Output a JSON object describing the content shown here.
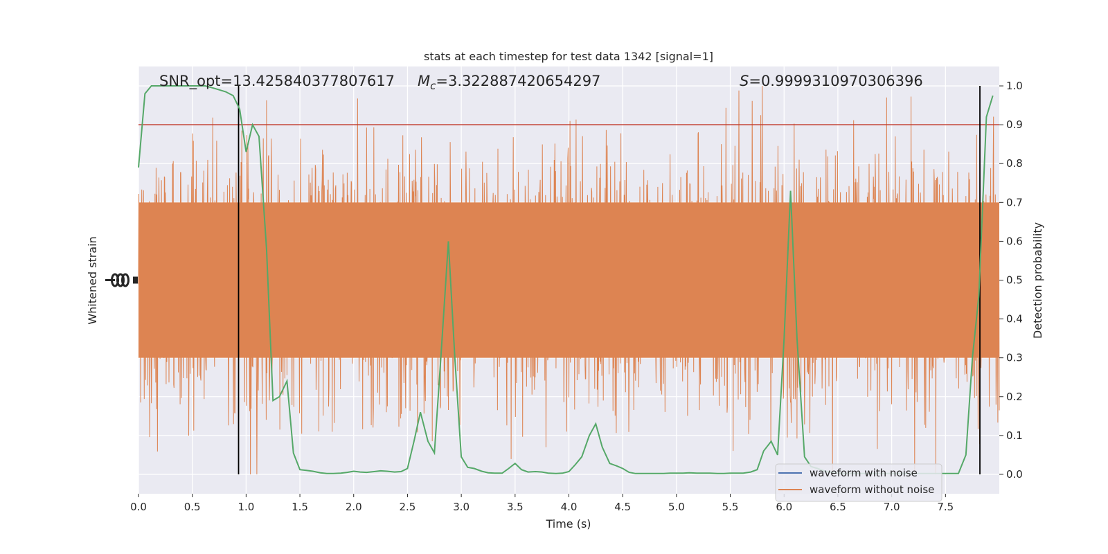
{
  "chart_data": {
    "type": "line",
    "title": "stats at each timestep for test data 1342 [signal=1]",
    "xlabel": "Time (s)",
    "ylabel_left": "Whitened strain",
    "ylabel_right": "Detection probability",
    "xlim": [
      0.0,
      8.0
    ],
    "right_ylim": [
      -0.05,
      1.05
    ],
    "x_ticks": [
      "0.0",
      "0.5",
      "1.0",
      "1.5",
      "2.0",
      "2.5",
      "3.0",
      "3.5",
      "4.0",
      "4.5",
      "5.0",
      "5.5",
      "6.0",
      "6.5",
      "7.0",
      "7.5"
    ],
    "right_y_ticks": [
      "0.0",
      "0.1",
      "0.2",
      "0.3",
      "0.4",
      "0.5",
      "0.6",
      "0.7",
      "0.8",
      "0.9",
      "1.0"
    ],
    "grid": true,
    "annotations": {
      "snr": "SNR_opt=13.425840377807617",
      "mc_symbol": "M",
      "mc_sub": "c",
      "mc_value": "=3.322887420654297",
      "s_symbol": "S",
      "s_value": "=0.9999310970306396"
    },
    "threshold": {
      "value": 0.9,
      "color": "#c0392b"
    },
    "vlines": [
      0.93,
      7.82
    ],
    "series": [
      {
        "name": "waveform with noise",
        "color": "#4c72b0",
        "values": []
      },
      {
        "name": "waveform without noise",
        "color": "#dd8452"
      },
      {
        "color": "#55a868",
        "x": [
          0.0,
          0.06,
          0.12,
          0.19,
          0.25,
          0.31,
          0.38,
          0.44,
          0.5,
          0.56,
          0.62,
          0.69,
          0.75,
          0.81,
          0.88,
          0.94,
          1.0,
          1.06,
          1.12,
          1.19,
          1.25,
          1.31,
          1.38,
          1.44,
          1.5,
          1.56,
          1.62,
          1.69,
          1.75,
          1.81,
          1.88,
          1.94,
          2.0,
          2.06,
          2.12,
          2.19,
          2.25,
          2.31,
          2.38,
          2.44,
          2.5,
          2.56,
          2.62,
          2.69,
          2.75,
          2.81,
          2.88,
          2.94,
          3.0,
          3.06,
          3.12,
          3.19,
          3.25,
          3.31,
          3.38,
          3.44,
          3.5,
          3.56,
          3.62,
          3.69,
          3.75,
          3.81,
          3.88,
          3.94,
          4.0,
          4.06,
          4.12,
          4.19,
          4.25,
          4.31,
          4.38,
          4.44,
          4.5,
          4.56,
          4.62,
          4.69,
          4.75,
          4.81,
          4.88,
          4.94,
          5.0,
          5.06,
          5.12,
          5.19,
          5.25,
          5.31,
          5.38,
          5.44,
          5.5,
          5.56,
          5.62,
          5.69,
          5.75,
          5.81,
          5.88,
          5.94,
          6.0,
          6.06,
          6.12,
          6.19,
          6.25,
          6.31,
          6.38,
          6.44,
          6.5,
          6.56,
          6.62,
          6.69,
          6.75,
          6.81,
          6.88,
          6.94,
          7.0,
          7.06,
          7.12,
          7.19,
          7.25,
          7.31,
          7.38,
          7.44,
          7.5,
          7.56,
          7.62,
          7.69,
          7.75,
          7.81,
          7.88,
          7.94
        ],
        "values": [
          0.79,
          0.98,
          1.0,
          1.0,
          1.0,
          1.0,
          1.0,
          1.0,
          1.0,
          1.0,
          1.0,
          0.995,
          0.99,
          0.985,
          0.975,
          0.94,
          0.83,
          0.9,
          0.87,
          0.58,
          0.19,
          0.2,
          0.24,
          0.055,
          0.012,
          0.01,
          0.008,
          0.004,
          0.002,
          0.002,
          0.003,
          0.005,
          0.008,
          0.006,
          0.005,
          0.007,
          0.009,
          0.008,
          0.006,
          0.007,
          0.015,
          0.085,
          0.16,
          0.085,
          0.055,
          0.3,
          0.6,
          0.3,
          0.045,
          0.018,
          0.015,
          0.008,
          0.004,
          0.003,
          0.003,
          0.015,
          0.028,
          0.012,
          0.006,
          0.007,
          0.006,
          0.003,
          0.002,
          0.003,
          0.007,
          0.025,
          0.045,
          0.1,
          0.13,
          0.07,
          0.028,
          0.022,
          0.015,
          0.005,
          0.002,
          0.002,
          0.002,
          0.002,
          0.002,
          0.003,
          0.003,
          0.003,
          0.004,
          0.003,
          0.003,
          0.003,
          0.002,
          0.002,
          0.003,
          0.003,
          0.003,
          0.006,
          0.012,
          0.06,
          0.085,
          0.05,
          0.35,
          0.73,
          0.35,
          0.045,
          0.02,
          0.015,
          0.008,
          0.005,
          0.003,
          0.002,
          0.002,
          0.002,
          0.002,
          0.002,
          0.002,
          0.002,
          0.002,
          0.002,
          0.002,
          0.002,
          0.002,
          0.002,
          0.002,
          0.002,
          0.002,
          0.002,
          0.002,
          0.05,
          0.3,
          0.46,
          0.92,
          0.975
        ]
      }
    ]
  }
}
